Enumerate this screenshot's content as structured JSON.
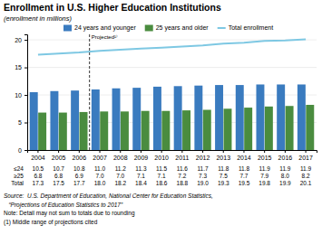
{
  "chart_data": {
    "type": "bar",
    "title": "Enrollment in U.S. Higher Education Institutions",
    "subtitle": "(enrollment in millions)",
    "categories": [
      "2004",
      "2005",
      "2006",
      "2007",
      "2008",
      "2009",
      "2010",
      "2011",
      "2012",
      "2013",
      "2014",
      "2015",
      "2016",
      "2017"
    ],
    "series": [
      {
        "name": "24 years and younger",
        "color": "#3a7bbf",
        "type": "bar",
        "values": [
          10.5,
          10.7,
          10.8,
          11.0,
          11.2,
          11.3,
          11.5,
          11.6,
          11.7,
          11.8,
          11.8,
          11.9,
          11.9,
          11.9
        ],
        "value_labels": [
          "10.5",
          "10.7",
          "10.8",
          "11.0",
          "11.2",
          "11.3",
          "11.5",
          "11.6",
          "11.7",
          "11.8",
          "11.8",
          "11.9",
          "11.9",
          "11.9"
        ]
      },
      {
        "name": "25 years and older",
        "color": "#4a8c3f",
        "type": "bar",
        "values": [
          6.8,
          6.8,
          6.9,
          7.0,
          7.0,
          7.1,
          7.1,
          7.2,
          7.3,
          7.5,
          7.7,
          7.9,
          8.0,
          8.2
        ],
        "value_labels": [
          "6.8",
          "6.8",
          "6.9",
          "7.0",
          "7.0",
          "7.1",
          "7.1",
          "7.2",
          "7.3",
          "7.5",
          "7.7",
          "7.9",
          "8.0",
          "8.2"
        ]
      },
      {
        "name": "Total enrollment",
        "color": "#7ec8e3",
        "type": "line",
        "values": [
          17.3,
          17.5,
          17.7,
          18.0,
          18.2,
          18.4,
          18.6,
          18.8,
          19.0,
          19.3,
          19.5,
          19.8,
          19.9,
          20.1
        ],
        "value_labels": [
          "17.3",
          "17.5",
          "17.7",
          "18.0",
          "18.2",
          "18.4",
          "18.6",
          "18.8",
          "19.0",
          "19.3",
          "19.5",
          "19.8",
          "19.9",
          "20.1"
        ]
      }
    ],
    "ylim": [
      0,
      21
    ],
    "yticks": [
      0,
      5,
      10,
      15,
      20
    ],
    "grid": true,
    "legend": "top",
    "annotations": [
      {
        "text": "Projected¹⁾",
        "x": "2007"
      }
    ],
    "table": {
      "row_labels": [
        "≤24",
        "≥25",
        "Total"
      ]
    },
    "notes": [
      "Source:  U.S. Department of Education, National Center for Education Statistics,",
      "   “Projections of Education Statistics to 2017”",
      "Note: Detail may not sum to totals due to rounding",
      "(1) Middle range of projections cited"
    ]
  }
}
